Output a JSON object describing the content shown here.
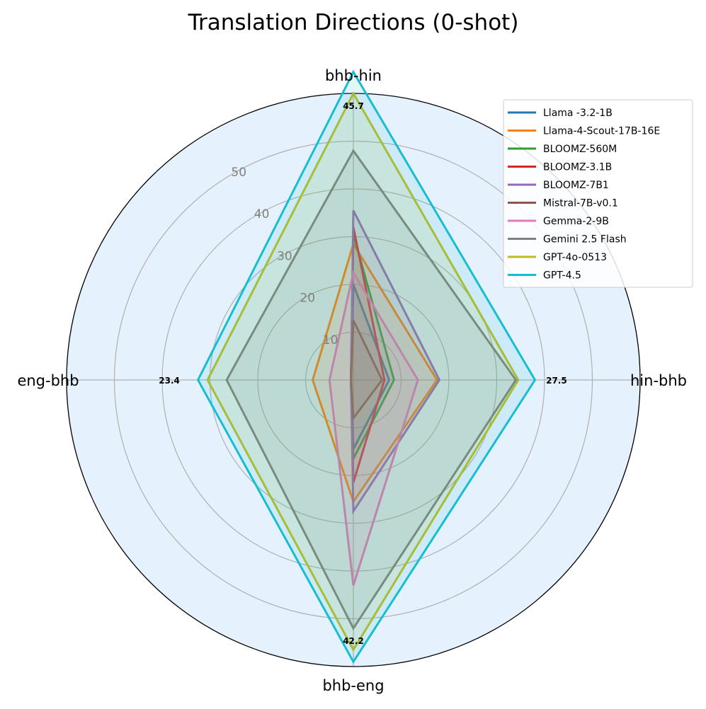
{
  "chart_data": {
    "type": "radar",
    "title": "Translation Directions (0-shot)",
    "axes": [
      "bhb-hin",
      "hin-bhb",
      "bhb-eng",
      "eng-bhb"
    ],
    "rlim": [
      0,
      60
    ],
    "radial_ticks": [
      10,
      20,
      30,
      40,
      50
    ],
    "grid": true,
    "legend_position": "top-right",
    "background_color": "#e5f1fd",
    "max_labels": [
      "45.7",
      "27.5",
      "42.2",
      "23.4"
    ],
    "series": [
      {
        "name": "Llama -3.2-1B",
        "color": "#1f77b4",
        "values": [
          20,
          7.5,
          14.5,
          0.5
        ]
      },
      {
        "name": "Llama-4-Scout-17B-16E",
        "color": "#ff7f0e",
        "values": [
          28.5,
          17.5,
          25.5,
          8.5
        ]
      },
      {
        "name": "BLOOMZ-560M",
        "color": "#2ca02c",
        "values": [
          30.5,
          8.5,
          16.5,
          0.5
        ]
      },
      {
        "name": "BLOOMZ-3.1B",
        "color": "#d62728",
        "values": [
          32,
          6.5,
          21.5,
          0.5
        ]
      },
      {
        "name": "BLOOMZ-7B1",
        "color": "#9467bd",
        "values": [
          35.5,
          18,
          27.5,
          0.5
        ]
      },
      {
        "name": "Mistral-7B-v0.1",
        "color": "#8c564b",
        "values": [
          12.5,
          6,
          8,
          0.5
        ]
      },
      {
        "name": "Gemma-2-9B",
        "color": "#e377c2",
        "values": [
          22.5,
          13.5,
          43,
          5
        ]
      },
      {
        "name": "Gemini 2.5 Flash",
        "color": "#7f7f7f",
        "values": [
          48,
          34,
          52,
          26.5
        ]
      },
      {
        "name": "GPT-4o-0513",
        "color": "#bcbd22",
        "values": [
          60,
          34.5,
          56.5,
          30.5
        ]
      },
      {
        "name": "GPT-4.5",
        "color": "#17becf",
        "values": [
          64.5,
          38,
          59,
          32.5
        ]
      }
    ]
  }
}
